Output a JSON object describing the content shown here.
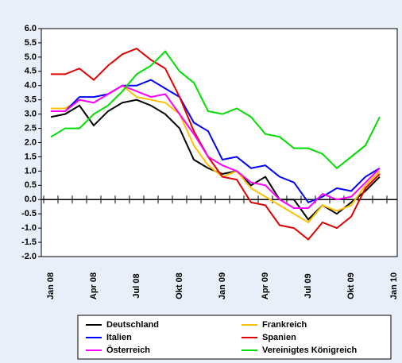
{
  "chart_data": {
    "type": "line",
    "categories": [
      "Jan 08",
      null,
      null,
      "Apr 08",
      null,
      null,
      "Jul 08",
      null,
      null,
      "Okt 08",
      null,
      null,
      "Jan 09",
      null,
      null,
      "Apr 09",
      null,
      null,
      "Jul 09",
      null,
      null,
      "Okt 09",
      null,
      null,
      "Jan 10"
    ],
    "series": [
      {
        "name": "Deutschland",
        "color": "#000000",
        "values": [
          2.9,
          3.0,
          3.3,
          2.6,
          3.1,
          3.4,
          3.5,
          3.3,
          3.0,
          2.5,
          1.4,
          1.1,
          0.9,
          1.0,
          0.5,
          0.8,
          0.0,
          0.0,
          -0.7,
          -0.2,
          -0.5,
          -0.1,
          0.3,
          0.8,
          null
        ]
      },
      {
        "name": "Frankreich",
        "color": "#ffc000",
        "values": [
          3.2,
          3.2,
          3.5,
          3.4,
          3.7,
          4.0,
          3.6,
          3.5,
          3.4,
          3.0,
          1.9,
          1.2,
          0.8,
          1.0,
          0.4,
          0.1,
          -0.2,
          -0.5,
          -0.8,
          -0.2,
          -0.4,
          -0.2,
          0.5,
          1.0,
          null
        ]
      },
      {
        "name": "Italien",
        "color": "#0000ff",
        "values": [
          3.1,
          3.1,
          3.6,
          3.6,
          3.7,
          4.0,
          4.0,
          4.2,
          3.9,
          3.6,
          2.7,
          2.4,
          1.4,
          1.5,
          1.1,
          1.2,
          0.8,
          0.6,
          -0.1,
          0.1,
          0.4,
          0.3,
          0.8,
          1.1,
          null
        ]
      },
      {
        "name": "Spanien",
        "color": "#e00000",
        "values": [
          4.4,
          4.4,
          4.6,
          4.2,
          4.7,
          5.1,
          5.3,
          4.9,
          4.6,
          3.6,
          2.4,
          1.5,
          0.8,
          0.7,
          -0.1,
          -0.2,
          -0.9,
          -1.0,
          -1.4,
          -0.8,
          -1.0,
          -0.6,
          0.4,
          0.9,
          null
        ]
      },
      {
        "name": "Österreich",
        "color": "#ff00ff",
        "values": [
          3.1,
          3.1,
          3.5,
          3.4,
          3.7,
          4.0,
          3.8,
          3.6,
          3.7,
          3.0,
          2.3,
          1.5,
          1.2,
          1.0,
          0.6,
          0.5,
          0.0,
          -0.3,
          -0.3,
          0.2,
          0.0,
          0.1,
          0.6,
          1.1,
          null
        ]
      },
      {
        "name": "Vereinigtes Königreich",
        "color": "#00dd00",
        "values": [
          2.2,
          2.5,
          2.5,
          3.0,
          3.3,
          3.8,
          4.4,
          4.7,
          5.2,
          4.5,
          4.1,
          3.1,
          3.0,
          3.2,
          2.9,
          2.3,
          2.2,
          1.8,
          1.8,
          1.6,
          1.1,
          1.5,
          1.9,
          2.9,
          null
        ]
      }
    ],
    "ylim": [
      -2,
      6
    ],
    "yticks": [
      {
        "value": -2,
        "label": "-2.0"
      },
      {
        "value": -1.5,
        "label": "-1.5"
      },
      {
        "value": -1,
        "label": "-1.0"
      },
      {
        "value": -0.5,
        "label": "-0.5"
      },
      {
        "value": 0,
        "label": "0.0"
      },
      {
        "value": 0.5,
        "label": "0.5"
      },
      {
        "value": 1,
        "label": "1.0"
      },
      {
        "value": 1.5,
        "label": "1.5"
      },
      {
        "value": 2,
        "label": "2.0"
      },
      {
        "value": 2.5,
        "label": "2.5"
      },
      {
        "value": 3,
        "label": "3.0"
      },
      {
        "value": 3.5,
        "label": "3.5"
      },
      {
        "value": 4,
        "label": "4.0"
      },
      {
        "value": 4.5,
        "label": "4.5"
      },
      {
        "value": 5,
        "label": "5.0"
      },
      {
        "value": 5.5,
        "label": "5.5"
      },
      {
        "value": 6,
        "label": "6.0"
      }
    ]
  }
}
